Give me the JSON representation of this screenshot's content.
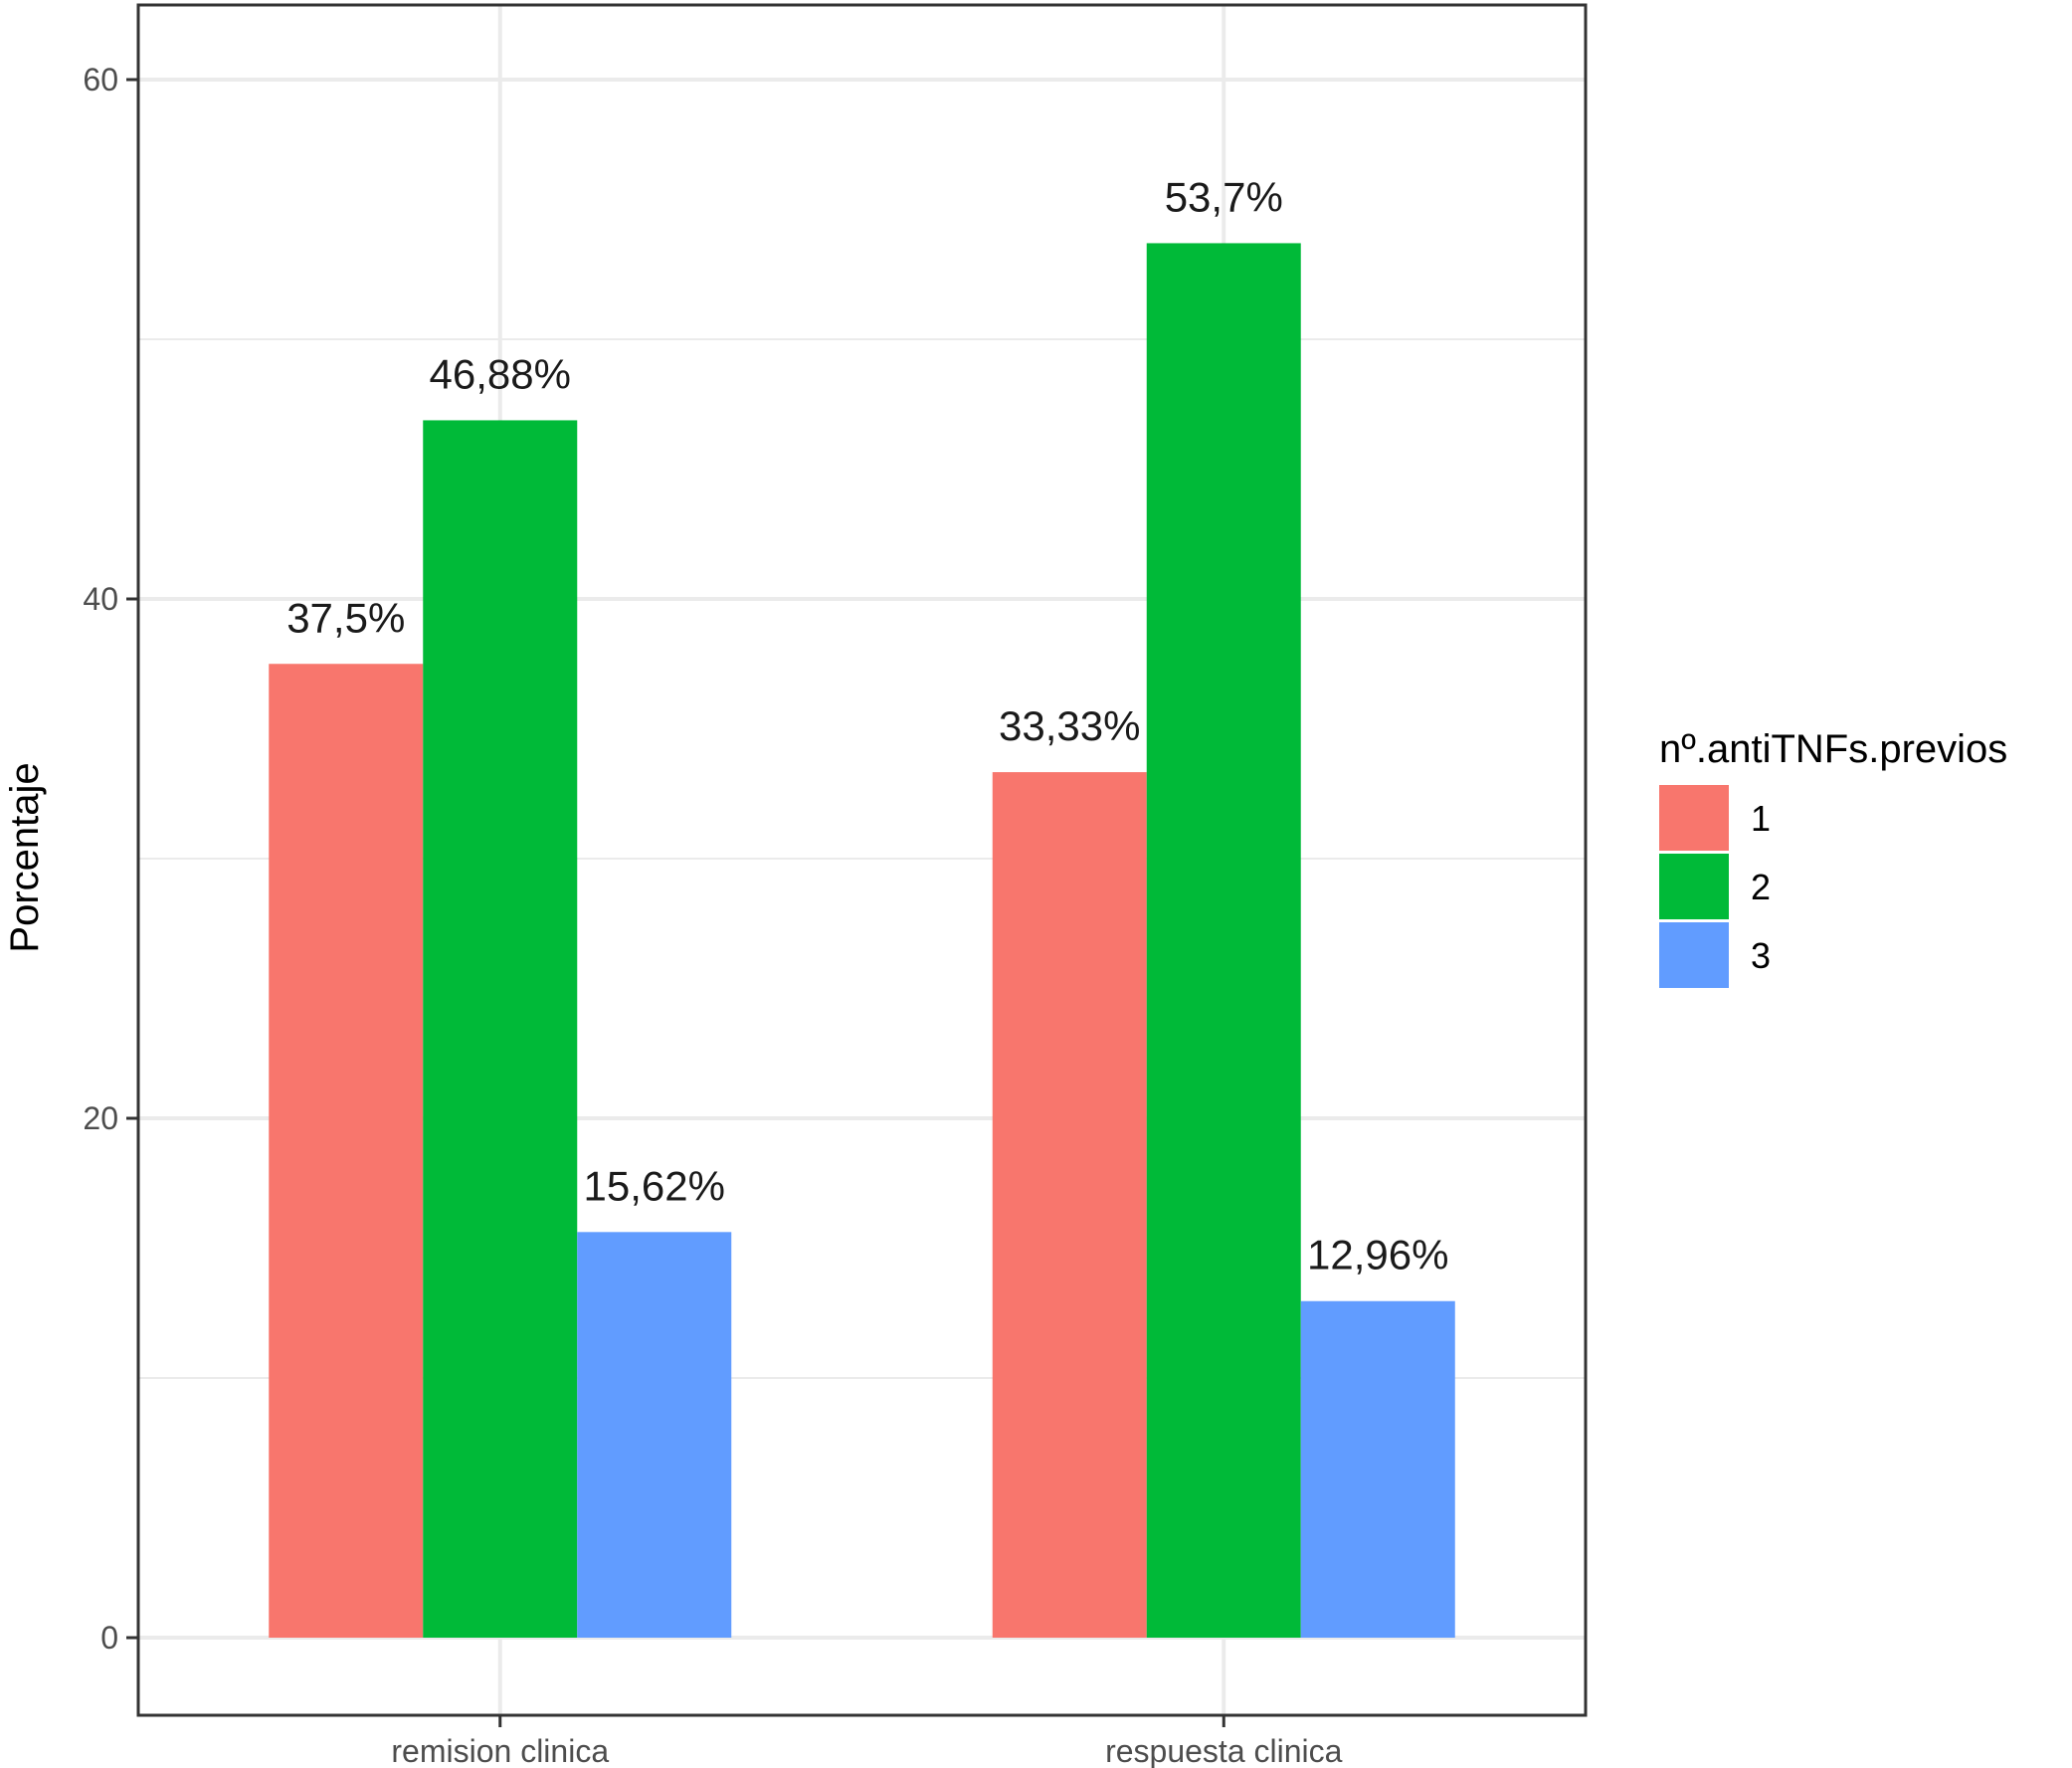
{
  "chart_data": {
    "type": "bar",
    "title": "",
    "xlabel": "",
    "ylabel": "Porcentaje",
    "categories": [
      "remision clinica",
      "respuesta clinica"
    ],
    "series": [
      {
        "name": "1",
        "color": "#F8766D",
        "values": [
          37.5,
          33.33
        ],
        "labels": [
          "37,5%",
          "33,33%"
        ]
      },
      {
        "name": "2",
        "color": "#00BA38",
        "values": [
          46.88,
          53.7
        ],
        "labels": [
          "46,88%",
          "53,7%"
        ]
      },
      {
        "name": "3",
        "color": "#619CFF",
        "values": [
          15.62,
          12.96
        ],
        "labels": [
          "15,62%",
          "12,96%"
        ]
      }
    ],
    "ylim": [
      0,
      63
    ],
    "yticks": [
      {
        "value": 0,
        "label": "0"
      },
      {
        "value": 20,
        "label": "20"
      },
      {
        "value": 40,
        "label": "40"
      },
      {
        "value": 60,
        "label": "60"
      }
    ],
    "grid": true,
    "legend": {
      "title": "nº.antiTNFs.previos",
      "position": "right"
    }
  }
}
